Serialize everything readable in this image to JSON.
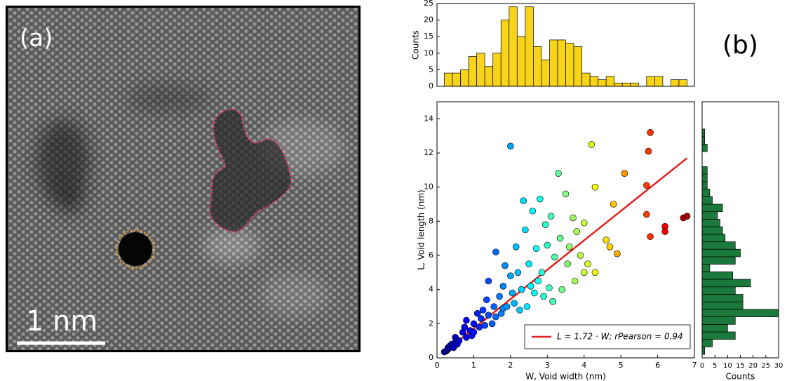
{
  "image_panel": {
    "label": "(a)",
    "scale_bar": "1 nm"
  },
  "panel_b_label": "(b)",
  "chart_data": [
    {
      "type": "histogram",
      "orientation": "vertical",
      "ylabel": "Counts",
      "color": "#f7d417",
      "bins": [
        0.2,
        0.42,
        0.64,
        0.86,
        1.08,
        1.3,
        1.52,
        1.74,
        1.96,
        2.18,
        2.4,
        2.62,
        2.84,
        3.06,
        3.28,
        3.5,
        3.72,
        3.94,
        4.16,
        4.38,
        4.6,
        4.82,
        5.04,
        5.26,
        5.48,
        5.7,
        5.92,
        6.14,
        6.36,
        6.58,
        6.8
      ],
      "values": [
        4,
        4,
        5,
        9,
        10,
        6,
        10,
        20,
        24,
        15,
        24,
        12,
        8,
        14,
        14,
        13,
        12,
        4,
        3,
        2,
        3,
        1,
        1,
        1,
        0,
        3,
        3,
        0,
        2,
        2
      ],
      "xlim": [
        0,
        7
      ],
      "ylim": [
        0,
        25
      ],
      "yticks": [
        0,
        5,
        10,
        15,
        20,
        25
      ]
    },
    {
      "type": "scatter",
      "xlabel": "W, Void width (nm)",
      "ylabel": "L, Void length (nm)",
      "colormap": "jet",
      "legend": "lower right",
      "x": [
        0.2,
        0.25,
        0.3,
        0.3,
        0.35,
        0.4,
        0.45,
        0.5,
        0.5,
        0.55,
        0.6,
        0.7,
        0.75,
        0.8,
        0.8,
        0.9,
        0.95,
        1.0,
        1.0,
        1.1,
        1.15,
        1.2,
        1.25,
        1.3,
        1.35,
        1.4,
        1.4,
        1.5,
        1.55,
        1.6,
        1.6,
        1.7,
        1.75,
        1.8,
        1.8,
        1.85,
        1.9,
        2.0,
        2.0,
        2.05,
        2.1,
        2.15,
        2.2,
        2.25,
        2.3,
        2.35,
        2.4,
        2.45,
        2.5,
        2.55,
        2.6,
        2.65,
        2.7,
        2.75,
        2.8,
        2.85,
        2.9,
        2.95,
        3.0,
        3.05,
        3.1,
        3.15,
        3.2,
        3.3,
        3.35,
        3.4,
        3.5,
        3.55,
        3.6,
        3.7,
        3.75,
        3.8,
        3.9,
        4.0,
        4.0,
        4.1,
        4.2,
        4.3,
        4.3,
        4.6,
        4.7,
        4.8,
        4.9,
        5.1,
        5.7,
        5.7,
        5.75,
        5.8,
        5.8,
        6.2,
        6.2,
        6.7,
        6.8
      ],
      "values": [
        0.35,
        0.4,
        0.5,
        0.6,
        0.7,
        0.8,
        0.6,
        0.9,
        1.2,
        0.8,
        1.0,
        1.5,
        1.8,
        1.2,
        2.2,
        1.6,
        1.3,
        2.0,
        1.5,
        2.6,
        1.8,
        2.3,
        2.8,
        1.9,
        3.4,
        2.5,
        4.5,
        2.0,
        3.0,
        2.4,
        6.2,
        3.6,
        2.6,
        4.2,
        2.9,
        5.4,
        3.0,
        4.8,
        12.4,
        3.8,
        3.2,
        6.5,
        5.0,
        2.8,
        4.0,
        9.2,
        7.5,
        3.0,
        5.5,
        4.2,
        8.6,
        3.8,
        6.4,
        4.5,
        9.3,
        5.0,
        3.6,
        7.8,
        6.6,
        4.1,
        8.3,
        3.3,
        5.9,
        10.8,
        7.0,
        4.0,
        9.6,
        5.5,
        6.5,
        8.2,
        4.5,
        7.4,
        6.0,
        7.9,
        5.0,
        5.5,
        12.5,
        10.0,
        5.0,
        6.9,
        6.5,
        9.0,
        6.1,
        10.8,
        8.4,
        10.1,
        12.1,
        13.2,
        7.1,
        7.7,
        7.4,
        8.2,
        8.3
      ],
      "fit": {
        "name": "L = 1.72 · W; rPearson = 0.94",
        "color": "#e3201c",
        "x": [
          0.2,
          6.8
        ],
        "values": [
          0.34,
          11.7
        ]
      },
      "xlim": [
        0,
        7
      ],
      "xticks": [
        0,
        1,
        2,
        3,
        4,
        5,
        6,
        7
      ],
      "ylim": [
        0,
        15
      ],
      "yticks": [
        0,
        2,
        4,
        6,
        8,
        10,
        12,
        14
      ]
    },
    {
      "type": "histogram",
      "orientation": "horizontal",
      "xlabel": "Counts",
      "color": "#1b7a3b",
      "bins": [
        0.2,
        0.64,
        1.08,
        1.52,
        1.96,
        2.4,
        2.84,
        3.28,
        3.72,
        4.16,
        4.6,
        5.04,
        5.48,
        5.92,
        6.36,
        6.8,
        7.24,
        7.68,
        8.12,
        8.56,
        9.0,
        9.44,
        9.88,
        10.32,
        10.76,
        11.2,
        11.64,
        12.08,
        12.52,
        12.96,
        13.4
      ],
      "values": [
        1,
        4,
        13,
        10,
        13,
        30,
        16,
        16,
        13,
        19,
        12,
        3,
        13,
        15,
        13,
        9,
        8,
        7,
        6,
        8,
        4,
        3,
        2,
        2,
        2,
        0,
        0,
        2,
        1,
        1
      ],
      "xlim": [
        0,
        30
      ],
      "xticks": [
        0,
        5,
        10,
        15,
        20,
        25,
        30
      ],
      "ylim": [
        0,
        15
      ]
    }
  ]
}
